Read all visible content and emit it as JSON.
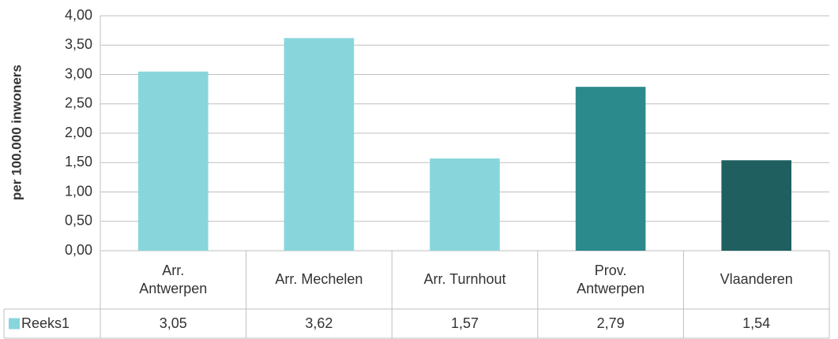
{
  "chart_data": {
    "type": "bar",
    "y_label": "per 100.000 inwoners",
    "categories": [
      "Arr.\nAntwerpen",
      "Arr. Mechelen",
      "Arr. Turnhout",
      "Prov.\nAntwerpen",
      "Vlaanderen"
    ],
    "series": [
      {
        "name": "Reeks1",
        "color": "#88d6dc",
        "values": [
          3.05,
          3.62,
          1.57,
          2.79,
          1.54
        ],
        "value_labels": [
          "3,05",
          "3,62",
          "1,57",
          "2,79",
          "1,54"
        ],
        "point_colors": [
          "#88d6dc",
          "#88d6dc",
          "#88d6dc",
          "#2a8a8c",
          "#1f5f60"
        ]
      }
    ],
    "ylim": [
      0,
      4
    ],
    "yticks": [
      {
        "value": 0,
        "label": "0,00"
      },
      {
        "value": 0.5,
        "label": "0,50"
      },
      {
        "value": 1,
        "label": "1,00"
      },
      {
        "value": 1.5,
        "label": "1,50"
      },
      {
        "value": 2,
        "label": "2,00"
      },
      {
        "value": 2.5,
        "label": "2,50"
      },
      {
        "value": 3,
        "label": "3,00"
      },
      {
        "value": 3.5,
        "label": "3,50"
      },
      {
        "value": 4,
        "label": "4,00"
      }
    ],
    "grid": true,
    "data_table": true
  }
}
